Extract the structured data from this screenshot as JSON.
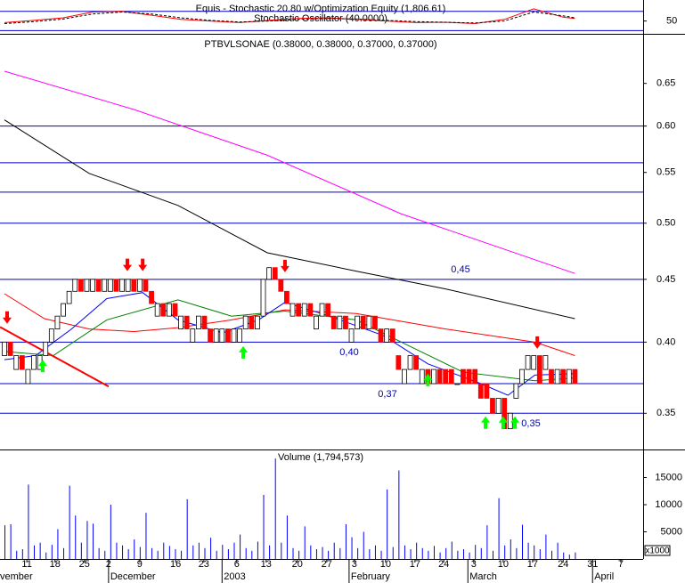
{
  "chart_data": [
    {
      "type": "line",
      "title": "Equis - Stochastic 20.80 w/Optimization Equity (1,806.61)",
      "subtitle": "Stochastic Oscillator (40.0000)",
      "x": [
        0,
        5,
        10,
        15,
        20,
        25,
        30,
        35,
        40,
        45,
        50,
        55,
        60,
        65,
        70,
        75,
        80,
        85,
        90,
        95,
        97
      ],
      "series": [
        {
          "color": "#ff0000",
          "values": [
            45,
            52,
            60,
            78,
            80,
            68,
            55,
            50,
            45,
            52,
            58,
            60,
            55,
            50,
            45,
            46,
            42,
            55,
            88,
            62,
            58
          ]
        },
        {
          "color": "#000000",
          "values": [
            42,
            48,
            56,
            72,
            78,
            72,
            60,
            52,
            47,
            50,
            55,
            58,
            56,
            52,
            48,
            46,
            44,
            50,
            78,
            66,
            60
          ]
        }
      ],
      "ylim": [
        10,
        110
      ],
      "yticks": [
        50
      ],
      "levels": [
        20,
        80
      ],
      "level_color": "#0000cc"
    },
    {
      "type": "candlestick",
      "title": "PTBVLSONAE (0.38000, 0.38000, 0.37000, 0.37000)",
      "x": [
        0,
        1,
        2,
        3,
        4,
        5,
        6,
        7,
        8,
        9,
        10,
        11,
        12,
        13,
        14,
        15,
        16,
        17,
        18,
        19,
        20,
        21,
        22,
        23,
        24,
        25,
        26,
        27,
        28,
        29,
        30,
        31,
        32,
        33,
        34,
        35,
        36,
        37,
        38,
        39,
        40,
        41,
        42,
        43,
        44,
        45,
        46,
        47,
        48,
        49,
        50,
        51,
        52,
        53,
        54,
        55,
        56,
        57,
        58,
        59,
        60,
        61,
        62,
        63,
        64,
        65,
        66,
        67,
        68,
        69,
        70,
        71,
        72,
        73,
        74,
        75,
        76,
        77,
        78,
        79,
        80,
        81,
        82,
        83,
        84,
        85,
        86,
        87,
        88,
        89,
        90,
        91,
        92,
        93,
        94,
        95,
        96,
        97
      ],
      "open": [
        0.39,
        0.4,
        0.38,
        0.39,
        0.37,
        0.38,
        0.38,
        0.39,
        0.4,
        0.41,
        0.42,
        0.43,
        0.44,
        0.45,
        0.44,
        0.44,
        0.45,
        0.44,
        0.44,
        0.45,
        0.44,
        0.44,
        0.45,
        0.44,
        0.45,
        0.44,
        0.42,
        0.43,
        0.42,
        0.43,
        0.41,
        0.42,
        0.4,
        0.41,
        0.42,
        0.41,
        0.4,
        0.4,
        0.41,
        0.4,
        0.4,
        0.41,
        0.42,
        0.41,
        0.42,
        0.45,
        0.46,
        0.45,
        0.44,
        0.42,
        0.43,
        0.42,
        0.43,
        0.41,
        0.42,
        0.43,
        0.42,
        0.41,
        0.42,
        0.4,
        0.41,
        0.42,
        0.41,
        0.42,
        0.41,
        0.4,
        0.41,
        0.39,
        0.37,
        0.38,
        0.39,
        0.37,
        0.38,
        0.37,
        0.38,
        0.38,
        0.38,
        0.37,
        0.38,
        0.38,
        0.38,
        0.37,
        0.37,
        0.36,
        0.35,
        0.36,
        0.34,
        0.36,
        0.37,
        0.38,
        0.38,
        0.39,
        0.38,
        0.38,
        0.37,
        0.38,
        0.37,
        0.38
      ],
      "close": [
        0.4,
        0.39,
        0.39,
        0.38,
        0.38,
        0.39,
        0.39,
        0.4,
        0.41,
        0.42,
        0.43,
        0.44,
        0.45,
        0.44,
        0.45,
        0.45,
        0.44,
        0.45,
        0.45,
        0.44,
        0.45,
        0.45,
        0.44,
        0.45,
        0.44,
        0.43,
        0.43,
        0.42,
        0.43,
        0.42,
        0.42,
        0.41,
        0.41,
        0.42,
        0.41,
        0.4,
        0.41,
        0.41,
        0.4,
        0.41,
        0.41,
        0.42,
        0.41,
        0.42,
        0.45,
        0.46,
        0.45,
        0.44,
        0.43,
        0.43,
        0.42,
        0.43,
        0.42,
        0.42,
        0.43,
        0.42,
        0.41,
        0.42,
        0.41,
        0.41,
        0.42,
        0.41,
        0.42,
        0.41,
        0.4,
        0.41,
        0.4,
        0.38,
        0.38,
        0.39,
        0.38,
        0.38,
        0.37,
        0.38,
        0.37,
        0.37,
        0.37,
        0.37,
        0.37,
        0.37,
        0.37,
        0.36,
        0.36,
        0.35,
        0.36,
        0.34,
        0.35,
        0.37,
        0.38,
        0.39,
        0.39,
        0.37,
        0.39,
        0.37,
        0.38,
        0.37,
        0.38,
        0.37
      ],
      "up_color": "#ffffff",
      "down_color": "#ff0000",
      "log_scale": true,
      "ylim": [
        0.327,
        0.711
      ],
      "yticks": [
        0.35,
        {
          "value": 0.4,
          "label": "0.40"
        },
        0.45,
        {
          "value": 0.5,
          "label": "0.50"
        },
        0.55,
        {
          "value": 0.6,
          "label": "0.60"
        },
        0.65
      ],
      "xlim": [
        -0.76,
        108.6
      ],
      "xticks": [
        {
          "value": 3.8,
          "label": "11"
        },
        {
          "value": 8.6,
          "label": "18"
        },
        {
          "value": 13.6,
          "label": "25"
        },
        {
          "value": 17.7,
          "label": "2"
        },
        {
          "value": 23,
          "label": "9"
        },
        {
          "value": 29.1,
          "label": "16"
        },
        {
          "value": 33.9,
          "label": "23"
        },
        {
          "value": 39.5,
          "label": "6"
        },
        {
          "value": 44.5,
          "label": "13"
        },
        {
          "value": 49.8,
          "label": "20"
        },
        {
          "value": 54.8,
          "label": "27"
        },
        {
          "value": 59.5,
          "label": "3"
        },
        {
          "value": 64.8,
          "label": "10"
        },
        {
          "value": 69.8,
          "label": "17"
        },
        {
          "value": 74.7,
          "label": "24"
        },
        {
          "value": 79.8,
          "label": "3"
        },
        {
          "value": 84.8,
          "label": "10"
        },
        {
          "value": 89.8,
          "label": "17"
        },
        {
          "value": 95,
          "label": "24"
        },
        {
          "value": 100,
          "label": "31"
        },
        {
          "value": 104.8,
          "label": "7"
        }
      ],
      "month_ticks": [
        {
          "value": -3.2,
          "label": "November"
        },
        {
          "value": 17.7,
          "label": "December"
        },
        {
          "value": 37,
          "label": "2003"
        },
        {
          "value": 58.6,
          "label": "February"
        },
        {
          "value": 78.8,
          "label": "March"
        },
        {
          "value": 100,
          "label": "April"
        }
      ],
      "horizontal_lines": [
        0.35,
        0.37,
        0.4,
        0.45,
        0.5,
        0.53,
        0.56,
        0.6
      ],
      "line_color": "#0000cc",
      "moving_averages": [
        {
          "color": "#ff00ff",
          "x": [
            0,
            22,
            44.7,
            67.4,
            97
          ],
          "values": [
            0.665,
            0.619,
            0.568,
            0.509,
            0.455
          ]
        },
        {
          "color": "#000000",
          "x": [
            0,
            14.4,
            29.5,
            44.7,
            59.8,
            75,
            97
          ],
          "values": [
            0.607,
            0.549,
            0.517,
            0.473,
            0.457,
            0.442,
            0.418
          ]
        },
        {
          "color": "#ff0000",
          "x": [
            0,
            6.8,
            14.4,
            22,
            29.5,
            38.6,
            47.7,
            59.8,
            75,
            90.2,
            97
          ],
          "values": [
            0.438,
            0.418,
            0.41,
            0.408,
            0.411,
            0.417,
            0.425,
            0.422,
            0.41,
            0.4,
            0.39
          ]
        },
        {
          "color": "#008000",
          "x": [
            0,
            8.3,
            17.4,
            29.5,
            38.6,
            47.7,
            59.8,
            68.9,
            78,
            90.2,
            97
          ],
          "values": [
            0.393,
            0.39,
            0.417,
            0.433,
            0.42,
            0.424,
            0.417,
            0.397,
            0.378,
            0.372,
            0.374
          ]
        },
        {
          "color": "#0000ff",
          "x": [
            0,
            5.3,
            11.4,
            17.4,
            23.5,
            29.5,
            37.1,
            43.2,
            47.7,
            55.3,
            64.4,
            72,
            81,
            85.6,
            90.2,
            97
          ],
          "values": [
            0.387,
            0.39,
            0.41,
            0.434,
            0.439,
            0.417,
            0.407,
            0.417,
            0.431,
            0.42,
            0.405,
            0.384,
            0.37,
            0.362,
            0.376,
            0.377
          ]
        }
      ],
      "trendline": {
        "color": "#ff0000",
        "x": [
          -0.76,
          17.7
        ],
        "values": [
          0.4115,
          0.368
        ]
      },
      "sell_signals": {
        "color": "#ff0000",
        "x": [
          0.45,
          20.9,
          23.5,
          47.7,
          90.6
        ],
        "values": [
          0.414,
          0.457,
          0.457,
          0.456,
          0.395
        ]
      },
      "buy_signals": {
        "color": "#00ff00",
        "x": [
          6.5,
          40.6,
          72,
          81.8,
          84.8,
          86.8
        ],
        "values": [
          0.387,
          0.397,
          0.377,
          0.348,
          0.348,
          0.348
        ]
      },
      "annotations": [
        "0,45",
        "0,40",
        "0,37",
        "0,35"
      ]
    },
    {
      "type": "bar",
      "title": "Volume (1,794,573)",
      "color": "#0000ff",
      "unit_label": "x1000",
      "values": [
        6200,
        6400,
        1500,
        1800,
        13700,
        2500,
        3000,
        1200,
        2600,
        5500,
        2000,
        13500,
        8000,
        3000,
        7000,
        6500,
        2000,
        1500,
        10000,
        3000,
        2500,
        1800,
        3600,
        2200,
        8500,
        2000,
        1500,
        3000,
        2400,
        1800,
        1500,
        11000,
        2500,
        3000,
        2000,
        3900,
        1500,
        2600,
        1800,
        3000,
        4500,
        2000,
        1500,
        3200,
        11800,
        2500,
        18500,
        3000,
        8000,
        2000,
        1500,
        6000,
        2500,
        1800,
        2200,
        1500,
        3000,
        2000,
        6400,
        4000,
        2000,
        5000,
        1800,
        2500,
        1500,
        12800,
        2200,
        16300,
        2500,
        1800,
        3000,
        2000,
        1500,
        2400,
        1200,
        2000,
        3200,
        1500,
        1800,
        1200,
        2600,
        2000,
        6200,
        1500,
        11200,
        2500,
        3600,
        2000,
        6300,
        3000,
        2500,
        1800,
        4500,
        1500,
        3000,
        1200,
        800,
        1200
      ],
      "ylim": [
        0,
        20160
      ],
      "yticks": [
        5000,
        10000,
        15000
      ]
    }
  ]
}
